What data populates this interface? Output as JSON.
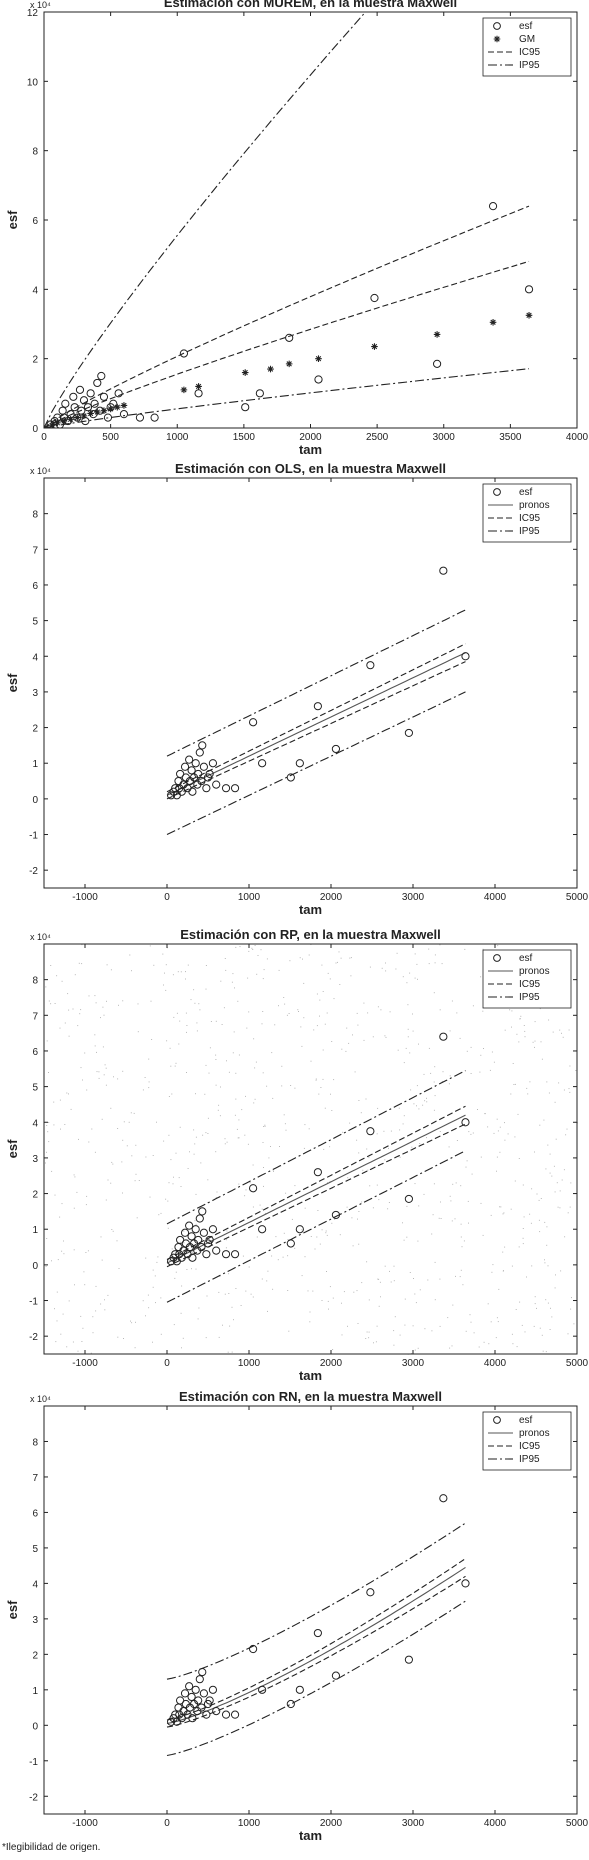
{
  "footnote": "*Ilegibilidad de origen.",
  "colors": {
    "ink": "#222222",
    "grey": "#555555",
    "noise": "#b8b8b8"
  },
  "chart_data": [
    {
      "type": "scatter",
      "title": "Estimación con MUREM, en la muestra Maxwell",
      "xlabel": "tam",
      "ylabel": "esf",
      "y_multiplier": "x 10⁴",
      "xlim": [
        0,
        4000
      ],
      "ylim": [
        0,
        12
      ],
      "xticks": [
        0,
        500,
        1000,
        1500,
        2000,
        2500,
        3000,
        3500,
        4000
      ],
      "yticks": [
        0,
        2,
        4,
        6,
        8,
        10,
        12
      ],
      "legend_position": "top-right",
      "legend": [
        "esf",
        "GM",
        "IC95",
        "IP95"
      ],
      "series": [
        {
          "name": "esf",
          "marker": "circle",
          "x": [
            50,
            80,
            100,
            120,
            140,
            150,
            160,
            180,
            200,
            220,
            230,
            250,
            270,
            280,
            300,
            310,
            330,
            350,
            370,
            380,
            400,
            420,
            430,
            450,
            480,
            500,
            520,
            560,
            600,
            720,
            830,
            1050,
            1160,
            1510,
            1620,
            1840,
            2060,
            2480,
            2950,
            3370,
            3640
          ],
          "y": [
            0.1,
            0.2,
            0.3,
            0.1,
            0.5,
            0.3,
            0.7,
            0.2,
            0.4,
            0.9,
            0.6,
            0.3,
            1.1,
            0.5,
            0.8,
            0.2,
            0.6,
            1.0,
            0.4,
            0.7,
            1.3,
            0.5,
            1.5,
            0.9,
            0.3,
            0.6,
            0.7,
            1.0,
            0.4,
            0.3,
            0.3,
            2.15,
            1.0,
            0.6,
            1.0,
            2.6,
            1.4,
            3.75,
            1.85,
            6.4,
            4.0
          ]
        },
        {
          "name": "GM",
          "marker": "star",
          "x": [
            60,
            100,
            150,
            200,
            250,
            300,
            350,
            400,
            450,
            500,
            550,
            600,
            1050,
            1160,
            1510,
            1700,
            1840,
            2060,
            2480,
            2950,
            3370,
            3640
          ],
          "y": [
            0.08,
            0.15,
            0.2,
            0.25,
            0.3,
            0.35,
            0.42,
            0.46,
            0.5,
            0.55,
            0.6,
            0.65,
            1.1,
            1.2,
            1.6,
            1.7,
            1.85,
            2.0,
            2.35,
            2.7,
            3.05,
            3.25
          ]
        },
        {
          "name": "IC95",
          "line": "dashed",
          "fn": "power",
          "a": 0.0049,
          "b": 0.875
        },
        {
          "name": "IC95",
          "line": "dashed",
          "fn": "power",
          "a": 0.00368,
          "b": 0.875
        },
        {
          "name": "IP95",
          "line": "dashdot",
          "fn": "power",
          "a": 0.01317,
          "b": 0.875
        },
        {
          "name": "IP95",
          "line": "dashdot",
          "fn": "power",
          "a": 0.00131,
          "b": 0.875
        }
      ]
    },
    {
      "type": "scatter",
      "title": "Estimación con OLS, en la muestra Maxwell",
      "xlabel": "tam",
      "ylabel": "esf",
      "y_multiplier": "x 10⁴",
      "xlim": [
        -1500,
        5000
      ],
      "ylim": [
        -2.5,
        9
      ],
      "xticks": [
        -1000,
        0,
        1000,
        2000,
        3000,
        4000,
        5000
      ],
      "yticks": [
        -2,
        -1,
        0,
        1,
        2,
        3,
        4,
        5,
        6,
        7,
        8
      ],
      "legend_position": "top-right",
      "legend": [
        "esf",
        "pronos",
        "IC95",
        "IP95"
      ],
      "series": [
        {
          "name": "esf",
          "marker": "circle",
          "x": [
            50,
            80,
            100,
            120,
            140,
            150,
            160,
            180,
            200,
            220,
            230,
            250,
            270,
            280,
            300,
            310,
            330,
            350,
            370,
            380,
            400,
            420,
            430,
            450,
            480,
            500,
            520,
            560,
            600,
            720,
            830,
            1050,
            1160,
            1510,
            1620,
            1840,
            2060,
            2480,
            2950,
            3370,
            3640
          ],
          "y": [
            0.1,
            0.2,
            0.3,
            0.1,
            0.5,
            0.3,
            0.7,
            0.2,
            0.4,
            0.9,
            0.6,
            0.3,
            1.1,
            0.5,
            0.8,
            0.2,
            0.6,
            1.0,
            0.4,
            0.7,
            1.3,
            0.5,
            1.5,
            0.9,
            0.3,
            0.6,
            0.7,
            1.0,
            0.4,
            0.3,
            0.3,
            2.15,
            1.0,
            0.6,
            1.0,
            2.6,
            1.4,
            3.75,
            1.85,
            6.4,
            4.0
          ]
        },
        {
          "name": "pronos",
          "line": "solid",
          "fn": "linear",
          "x": [
            0,
            3640
          ],
          "y": [
            0.1,
            4.1
          ]
        },
        {
          "name": "IC95",
          "line": "dashed",
          "fn": "linear",
          "x": [
            0,
            3640
          ],
          "y": [
            0.2,
            4.35
          ]
        },
        {
          "name": "IC95",
          "line": "dashed",
          "fn": "linear",
          "x": [
            0,
            3640
          ],
          "y": [
            0.0,
            3.85
          ]
        },
        {
          "name": "IP95",
          "line": "dashdot",
          "fn": "linear",
          "x": [
            0,
            3640
          ],
          "y": [
            1.2,
            5.3
          ]
        },
        {
          "name": "IP95",
          "line": "dashdot",
          "fn": "linear",
          "x": [
            0,
            3640
          ],
          "y": [
            -1.0,
            3.0
          ]
        }
      ]
    },
    {
      "type": "scatter",
      "title": "Estimación con RP, en la muestra Maxwell",
      "xlabel": "tam",
      "ylabel": "esf",
      "y_multiplier": "x 10⁴",
      "xlim": [
        -1500,
        5000
      ],
      "ylim": [
        -2.5,
        9
      ],
      "xticks": [
        -1000,
        0,
        1000,
        2000,
        3000,
        4000,
        5000
      ],
      "yticks": [
        -2,
        -1,
        0,
        1,
        2,
        3,
        4,
        5,
        6,
        7,
        8
      ],
      "legend_position": "top-right",
      "legend": [
        "esf",
        "pronos",
        "IC95",
        "IP95"
      ],
      "noisy_background": true,
      "series": [
        {
          "name": "esf",
          "marker": "circle",
          "x": [
            50,
            80,
            100,
            120,
            140,
            150,
            160,
            180,
            200,
            220,
            230,
            250,
            270,
            280,
            300,
            310,
            330,
            350,
            370,
            380,
            400,
            420,
            430,
            450,
            480,
            500,
            520,
            560,
            600,
            720,
            830,
            1050,
            1160,
            1510,
            1620,
            1840,
            2060,
            2480,
            2950,
            3370,
            3640
          ],
          "y": [
            0.1,
            0.2,
            0.3,
            0.1,
            0.5,
            0.3,
            0.7,
            0.2,
            0.4,
            0.9,
            0.6,
            0.3,
            1.1,
            0.5,
            0.8,
            0.2,
            0.6,
            1.0,
            0.4,
            0.7,
            1.3,
            0.5,
            1.5,
            0.9,
            0.3,
            0.6,
            0.7,
            1.0,
            0.4,
            0.3,
            0.3,
            2.15,
            1.0,
            0.6,
            1.0,
            2.6,
            1.4,
            3.75,
            1.85,
            6.4,
            4.0
          ]
        },
        {
          "name": "pronos",
          "line": "solid",
          "fn": "linear",
          "x": [
            0,
            3640
          ],
          "y": [
            0.05,
            4.2
          ]
        },
        {
          "name": "IC95",
          "line": "dashed",
          "fn": "linear",
          "x": [
            0,
            3640
          ],
          "y": [
            0.15,
            4.45
          ]
        },
        {
          "name": "IC95",
          "line": "dashed",
          "fn": "linear",
          "x": [
            0,
            3640
          ],
          "y": [
            -0.05,
            3.95
          ]
        },
        {
          "name": "IP95",
          "line": "dashdot",
          "fn": "linear",
          "x": [
            0,
            3640
          ],
          "y": [
            1.15,
            5.45
          ]
        },
        {
          "name": "IP95",
          "line": "dashdot",
          "fn": "linear",
          "x": [
            0,
            3640
          ],
          "y": [
            -1.05,
            3.2
          ]
        }
      ]
    },
    {
      "type": "scatter",
      "title": "Estimación con RN, en la muestra Maxwell",
      "xlabel": "tam",
      "ylabel": "esf",
      "y_multiplier": "x 10⁴",
      "xlim": [
        -1500,
        5000
      ],
      "ylim": [
        -2.5,
        9
      ],
      "xticks": [
        -1000,
        0,
        1000,
        2000,
        3000,
        4000,
        5000
      ],
      "yticks": [
        -2,
        -1,
        0,
        1,
        2,
        3,
        4,
        5,
        6,
        7,
        8
      ],
      "legend_position": "top-right",
      "legend": [
        "esf",
        "pronos",
        "IC95",
        "IP95"
      ],
      "series": [
        {
          "name": "esf",
          "marker": "circle",
          "x": [
            50,
            80,
            100,
            120,
            140,
            150,
            160,
            180,
            200,
            220,
            230,
            250,
            270,
            280,
            300,
            310,
            330,
            350,
            370,
            380,
            400,
            420,
            430,
            450,
            480,
            500,
            520,
            560,
            600,
            720,
            830,
            1050,
            1160,
            1510,
            1620,
            1840,
            2060,
            2480,
            2950,
            3370,
            3640
          ],
          "y": [
            0.1,
            0.2,
            0.3,
            0.1,
            0.5,
            0.3,
            0.7,
            0.2,
            0.4,
            0.9,
            0.6,
            0.3,
            1.1,
            0.5,
            0.8,
            0.2,
            0.6,
            1.0,
            0.4,
            0.7,
            1.3,
            0.5,
            1.5,
            0.9,
            0.3,
            0.6,
            0.7,
            1.0,
            0.4,
            0.3,
            0.3,
            2.15,
            1.0,
            0.6,
            1.0,
            2.6,
            1.4,
            3.75,
            1.85,
            6.4,
            4.0
          ]
        },
        {
          "name": "pronos",
          "line": "solid",
          "fn": "curve",
          "y0": 0.05,
          "y1": 4.45,
          "x1": 3640,
          "p": 1.25
        },
        {
          "name": "IC95",
          "line": "dashed",
          "fn": "curve",
          "y0": 0.15,
          "y1": 4.7,
          "x1": 3640,
          "p": 1.25
        },
        {
          "name": "IC95",
          "line": "dashed",
          "fn": "curve",
          "y0": -0.05,
          "y1": 4.2,
          "x1": 3640,
          "p": 1.25
        },
        {
          "name": "IP95",
          "line": "dashdot",
          "fn": "curve",
          "y0": 1.3,
          "y1": 5.7,
          "x1": 3640,
          "p": 1.25
        },
        {
          "name": "IP95",
          "line": "dashdot",
          "fn": "curve",
          "y0": -0.85,
          "y1": 3.5,
          "x1": 3640,
          "p": 1.25
        }
      ]
    }
  ]
}
